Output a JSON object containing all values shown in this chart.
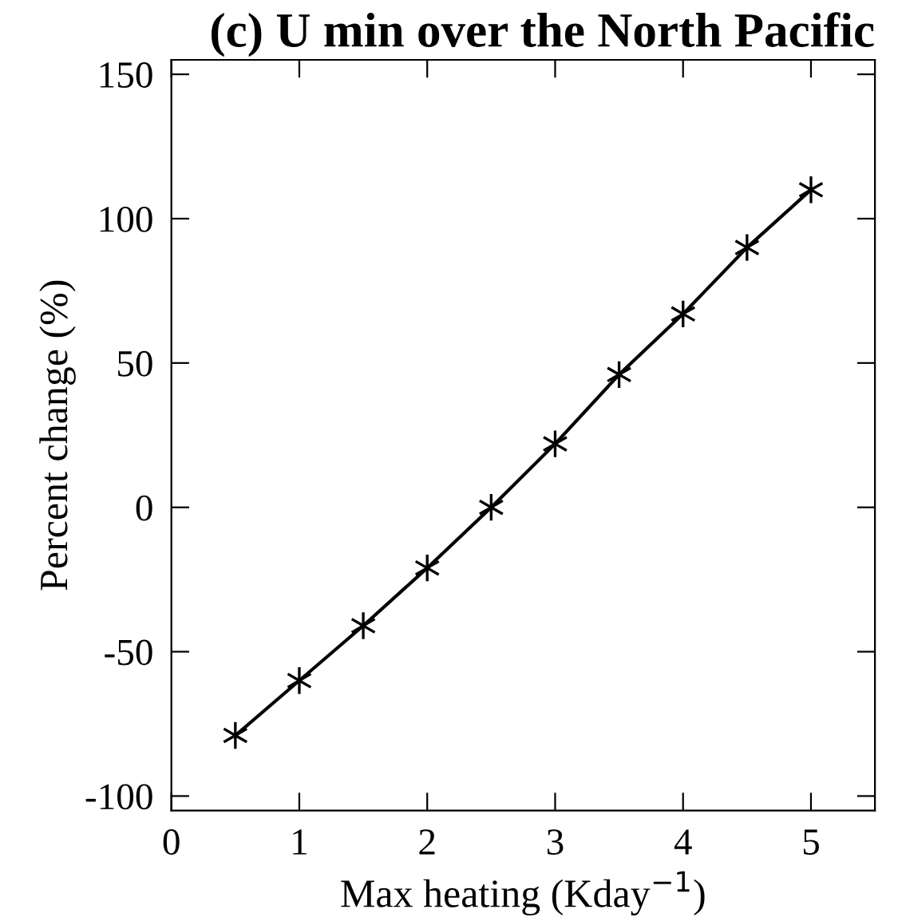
{
  "chart_data": {
    "type": "line",
    "title": "(c) U min over the North Pacific",
    "xlabel": "Max heating (Kday$^{−1}$)",
    "ylabel": "Percent change (%)",
    "x": [
      0.5,
      1,
      1.5,
      2,
      2.5,
      3,
      3.5,
      4,
      4.5,
      5
    ],
    "series": [
      {
        "color": "#000000",
        "values": [
          -79,
          -60,
          -41,
          -21,
          0,
          22,
          46,
          67,
          90,
          110
        ]
      }
    ],
    "xlim": [
      0,
      5.5
    ],
    "xticks": [
      0,
      1,
      2,
      3,
      4,
      5
    ],
    "ylim": [
      -105,
      155
    ],
    "yticks": [
      -100,
      -50,
      0,
      50,
      100,
      150
    ],
    "marker": "cross",
    "line_style": "solid",
    "grid": false,
    "legend": false
  }
}
